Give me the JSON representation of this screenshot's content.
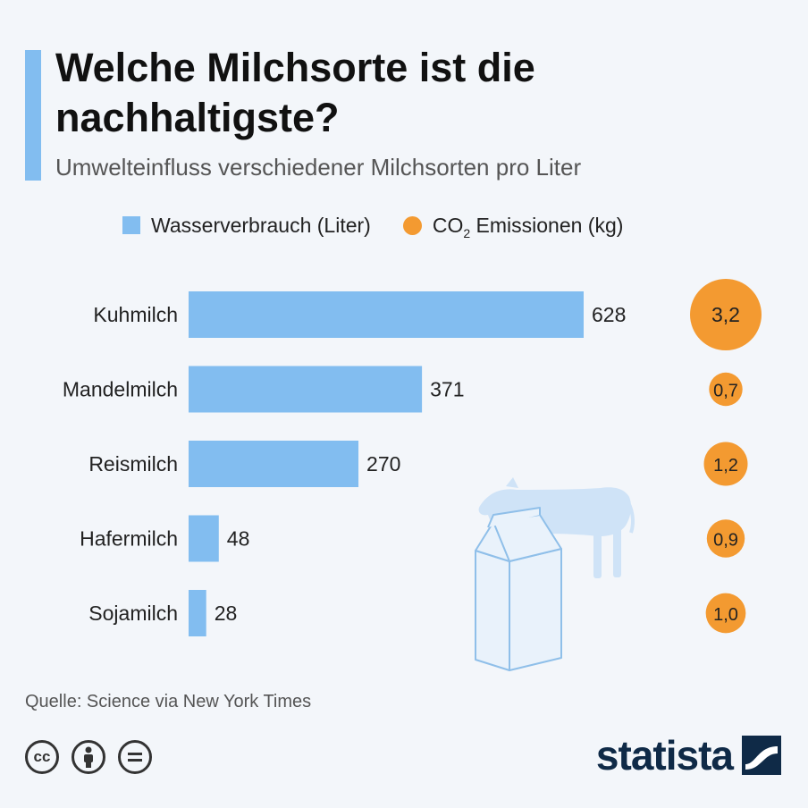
{
  "header": {
    "title": "Welche Milchsorte ist die nachhaltigste?",
    "subtitle": "Umwelteinfluss verschiedener Milchsorten pro Liter"
  },
  "legend": {
    "water_label": "Wasserverbrauch (Liter)",
    "co2_prefix": "CO",
    "co2_subscript": "2",
    "co2_suffix": " Emissionen (kg)"
  },
  "chart_data": {
    "type": "bar",
    "categories": [
      "Kuhmilch",
      "Mandelmilch",
      "Reismilch",
      "Hafermilch",
      "Sojamilch"
    ],
    "series": [
      {
        "name": "Wasserverbrauch (Liter)",
        "values": [
          628,
          371,
          270,
          48,
          28
        ],
        "labels": [
          "628",
          "371",
          "270",
          "48",
          "28"
        ]
      },
      {
        "name": "CO2 Emissionen (kg)",
        "values": [
          3.2,
          0.7,
          1.2,
          0.9,
          1.0
        ],
        "labels": [
          "3,2",
          "0,7",
          "1,2",
          "0,9",
          "1,0"
        ]
      }
    ],
    "xlim": [
      0,
      628
    ],
    "grid": false,
    "legend_position": "top"
  },
  "footer": {
    "source": "Quelle: Science via New York Times",
    "brand": "statista"
  },
  "icons": {
    "illustration": [
      "cow-icon",
      "milk-carton-icon"
    ],
    "license": [
      "cc-icon",
      "attribution-icon",
      "no-derivatives-icon"
    ],
    "logo": "statista-logo-icon"
  },
  "colors": {
    "bar": "#82bdf0",
    "bubble": "#f39a31",
    "accent": "#82bdf0",
    "illustration": "#cfe3f7",
    "brand": "#0f2a47"
  }
}
